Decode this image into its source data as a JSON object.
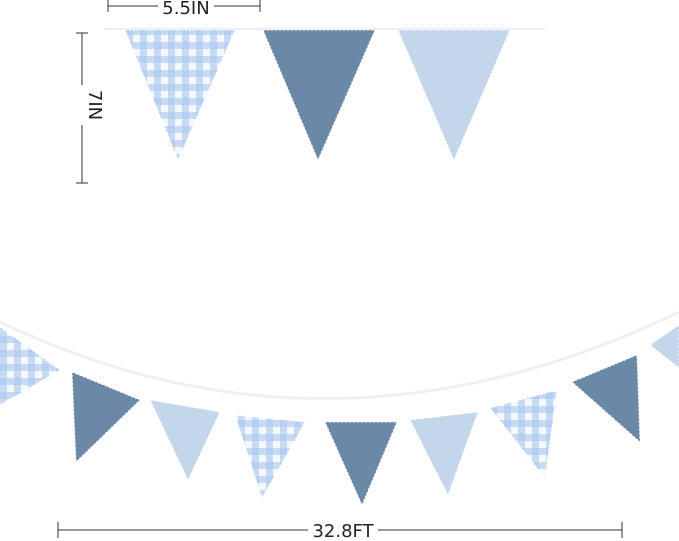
{
  "dimensions": {
    "width": "5.5IN",
    "height": "7IN",
    "length": "32.8FT"
  }
}
